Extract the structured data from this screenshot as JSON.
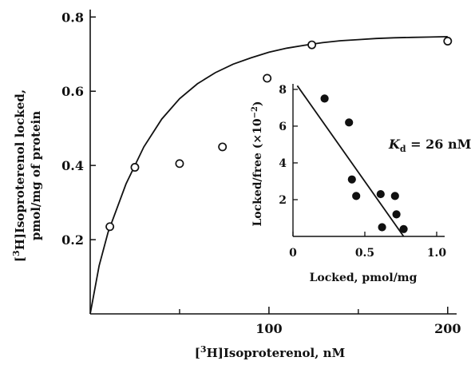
{
  "chart_data": [
    {
      "type": "scatter",
      "title": "",
      "xlabel_prefix": "[",
      "xlabel_sup": "3",
      "xlabel_rest": "H]Isoproterenol, nM",
      "ylabel_line1_prefix": "[",
      "ylabel_line1_sup": "3",
      "ylabel_line1_rest": "H]Isoproterenol locked,",
      "ylabel_line2": "pmol/mg of protein",
      "xlim": [
        0,
        205
      ],
      "ylim": [
        0,
        0.82
      ],
      "xticks": [
        100,
        200
      ],
      "xticklabels": [
        "100",
        "200"
      ],
      "xminor_ticks": [
        50,
        150
      ],
      "yticks": [
        0.2,
        0.4,
        0.6,
        0.8
      ],
      "yticklabels": [
        "0.2",
        "0.4",
        "0.6",
        "0.8"
      ],
      "series": [
        {
          "marker": "open-circle",
          "x": [
            11,
            25,
            50,
            74,
            99,
            124,
            200
          ],
          "y": [
            0.235,
            0.395,
            0.405,
            0.45,
            0.635,
            0.725,
            0.735
          ]
        }
      ],
      "fit_curve": {
        "model": "saturation",
        "x": [
          0,
          5,
          10,
          20,
          30,
          40,
          50,
          60,
          70,
          80,
          90,
          100,
          110,
          120,
          130,
          140,
          150,
          160,
          170,
          180,
          190,
          200
        ],
        "y": [
          0.0,
          0.13,
          0.22,
          0.35,
          0.45,
          0.525,
          0.58,
          0.62,
          0.65,
          0.673,
          0.69,
          0.705,
          0.716,
          0.724,
          0.731,
          0.736,
          0.739,
          0.742,
          0.744,
          0.745,
          0.746,
          0.747
        ]
      }
    },
    {
      "type": "scatter",
      "title": "",
      "xlabel": "Locked, pmol/mg",
      "ylabel_prefix": "Locked/free (×10",
      "ylabel_sup": "−2",
      "ylabel_suffix": ")",
      "xlim": [
        0,
        1.0
      ],
      "ylim": [
        0,
        8.3
      ],
      "xticks": [
        0,
        0.5,
        1.0
      ],
      "xticklabels": [
        "0",
        "0.5",
        "1.0"
      ],
      "yticks": [
        2,
        4,
        6,
        8
      ],
      "yticklabels": [
        "2",
        "4",
        "6",
        "8"
      ],
      "series": [
        {
          "marker": "filled-circle",
          "x": [
            0.22,
            0.39,
            0.41,
            0.44,
            0.61,
            0.62,
            0.71,
            0.72,
            0.77
          ],
          "y": [
            7.5,
            6.2,
            3.1,
            2.2,
            2.3,
            0.5,
            2.2,
            1.2,
            0.4
          ]
        }
      ],
      "fit_line": {
        "x": [
          0.03,
          0.77
        ],
        "y": [
          8.2,
          0.0
        ]
      },
      "annotation_symbol": "K",
      "annotation_sub": "d",
      "annotation_value": " = 26 nM"
    }
  ]
}
